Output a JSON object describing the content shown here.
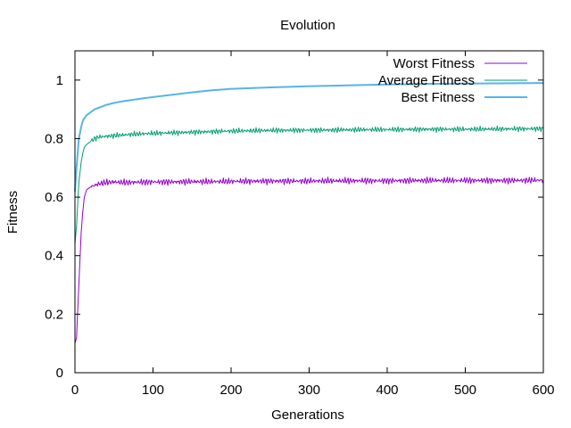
{
  "chart_data": {
    "type": "line",
    "title": "Evolution",
    "xlabel": "Generations",
    "ylabel": "Fitness",
    "xlim": [
      0,
      600
    ],
    "ylim": [
      0,
      1.1
    ],
    "x_ticks": [
      0,
      100,
      200,
      300,
      400,
      500,
      600
    ],
    "y_ticks": [
      0,
      0.2,
      0.4,
      0.6,
      0.8,
      1
    ],
    "x_tick_labels": [
      "0",
      "100",
      "200",
      "300",
      "400",
      "500",
      "600"
    ],
    "y_tick_labels": [
      "0",
      "0.2",
      "0.4",
      "0.6",
      "0.8",
      "1"
    ],
    "grid": false,
    "legend": "top-right",
    "x": [
      0,
      2,
      5,
      8,
      10,
      12,
      15,
      20,
      25,
      30,
      40,
      50,
      60,
      75,
      100,
      125,
      150,
      175,
      200,
      250,
      300,
      350,
      400,
      450,
      500,
      550,
      600
    ],
    "series": [
      {
        "name": "Worst Fitness",
        "color": "#9400d3",
        "values": [
          0.1,
          0.12,
          0.3,
          0.48,
          0.55,
          0.6,
          0.625,
          0.635,
          0.64,
          0.645,
          0.65,
          0.652,
          0.65,
          0.651,
          0.652,
          0.652,
          0.653,
          0.653,
          0.654,
          0.655,
          0.655,
          0.656,
          0.656,
          0.657,
          0.657,
          0.657,
          0.658
        ]
      },
      {
        "name": "Average Fitness",
        "color": "#009e73",
        "values": [
          0.44,
          0.5,
          0.65,
          0.72,
          0.75,
          0.77,
          0.78,
          0.79,
          0.8,
          0.805,
          0.808,
          0.81,
          0.812,
          0.815,
          0.818,
          0.82,
          0.822,
          0.824,
          0.826,
          0.828,
          0.829,
          0.83,
          0.831,
          0.832,
          0.832,
          0.833,
          0.834
        ]
      },
      {
        "name": "Best Fitness",
        "color": "#56b4e9",
        "values": [
          0.62,
          0.7,
          0.8,
          0.84,
          0.86,
          0.87,
          0.88,
          0.89,
          0.9,
          0.905,
          0.915,
          0.922,
          0.927,
          0.933,
          0.942,
          0.95,
          0.958,
          0.965,
          0.97,
          0.975,
          0.979,
          0.982,
          0.985,
          0.987,
          0.988,
          0.989,
          0.99
        ]
      }
    ]
  }
}
